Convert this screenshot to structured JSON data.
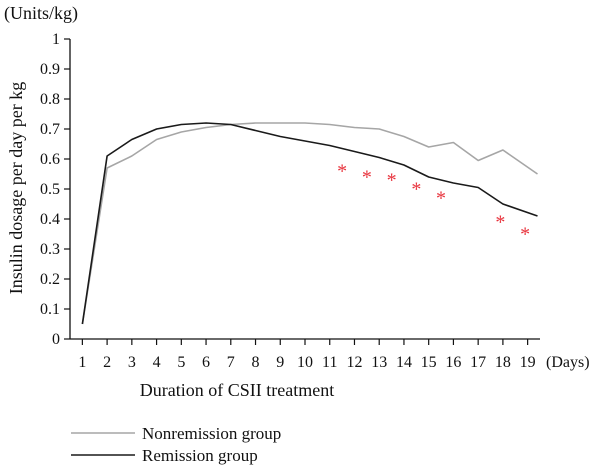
{
  "chart_data": {
    "type": "line",
    "unit_label": "(Units/kg)",
    "xlabel": "Duration of CSII treatment",
    "x_unit_label": "(Days)",
    "ylabel": "Insulin dosage per day per kg",
    "x": [
      1,
      2,
      3,
      4,
      5,
      6,
      7,
      8,
      9,
      10,
      11,
      12,
      13,
      14,
      15,
      16,
      17,
      18,
      19
    ],
    "xlim": [
      0.5,
      19.5
    ],
    "ylim": [
      0,
      1
    ],
    "yticks": [
      0,
      0.1,
      0.2,
      0.3,
      0.4,
      0.5,
      0.6,
      0.7,
      0.8,
      0.9,
      1
    ],
    "ytick_labels": [
      "0",
      "0.1",
      "0.2",
      "0.3",
      "0.4",
      "0.5",
      "0.6",
      "0.7",
      "0.8",
      "0.9",
      "1"
    ],
    "xtick_labels": [
      "1",
      "2",
      "3",
      "4",
      "5",
      "6",
      "7",
      "8",
      "9",
      "10",
      "11",
      "12",
      "13",
      "14",
      "15",
      "16",
      "17",
      "18",
      "19"
    ],
    "grid": false,
    "legend_position": "bottom-left",
    "series": [
      {
        "name": "Nonremission group",
        "color": "#a6a6a6",
        "x": [
          1,
          2,
          3,
          4,
          5,
          6,
          7,
          8,
          9,
          10,
          11,
          12,
          13,
          14,
          15,
          16,
          17,
          18,
          19.4
        ],
        "values": [
          0.05,
          0.57,
          0.61,
          0.665,
          0.69,
          0.705,
          0.715,
          0.72,
          0.72,
          0.72,
          0.715,
          0.705,
          0.7,
          0.675,
          0.64,
          0.655,
          0.595,
          0.63,
          0.55
        ]
      },
      {
        "name": "Remission group",
        "color": "#1a1a1a",
        "x": [
          1,
          2,
          3,
          4,
          5,
          6,
          7,
          8,
          9,
          10,
          11,
          12,
          13,
          14,
          15,
          16,
          17,
          18,
          19.4
        ],
        "values": [
          0.05,
          0.61,
          0.665,
          0.7,
          0.715,
          0.72,
          0.715,
          0.695,
          0.675,
          0.66,
          0.645,
          0.625,
          0.605,
          0.58,
          0.54,
          0.52,
          0.505,
          0.45,
          0.41
        ]
      }
    ],
    "annotations": {
      "symbol": "*",
      "color": "#e8323c",
      "x": [
        11.5,
        12.5,
        13.5,
        14.5,
        15.5,
        17.9,
        18.9
      ],
      "values": [
        0.565,
        0.545,
        0.535,
        0.505,
        0.475,
        0.395,
        0.355
      ]
    }
  }
}
